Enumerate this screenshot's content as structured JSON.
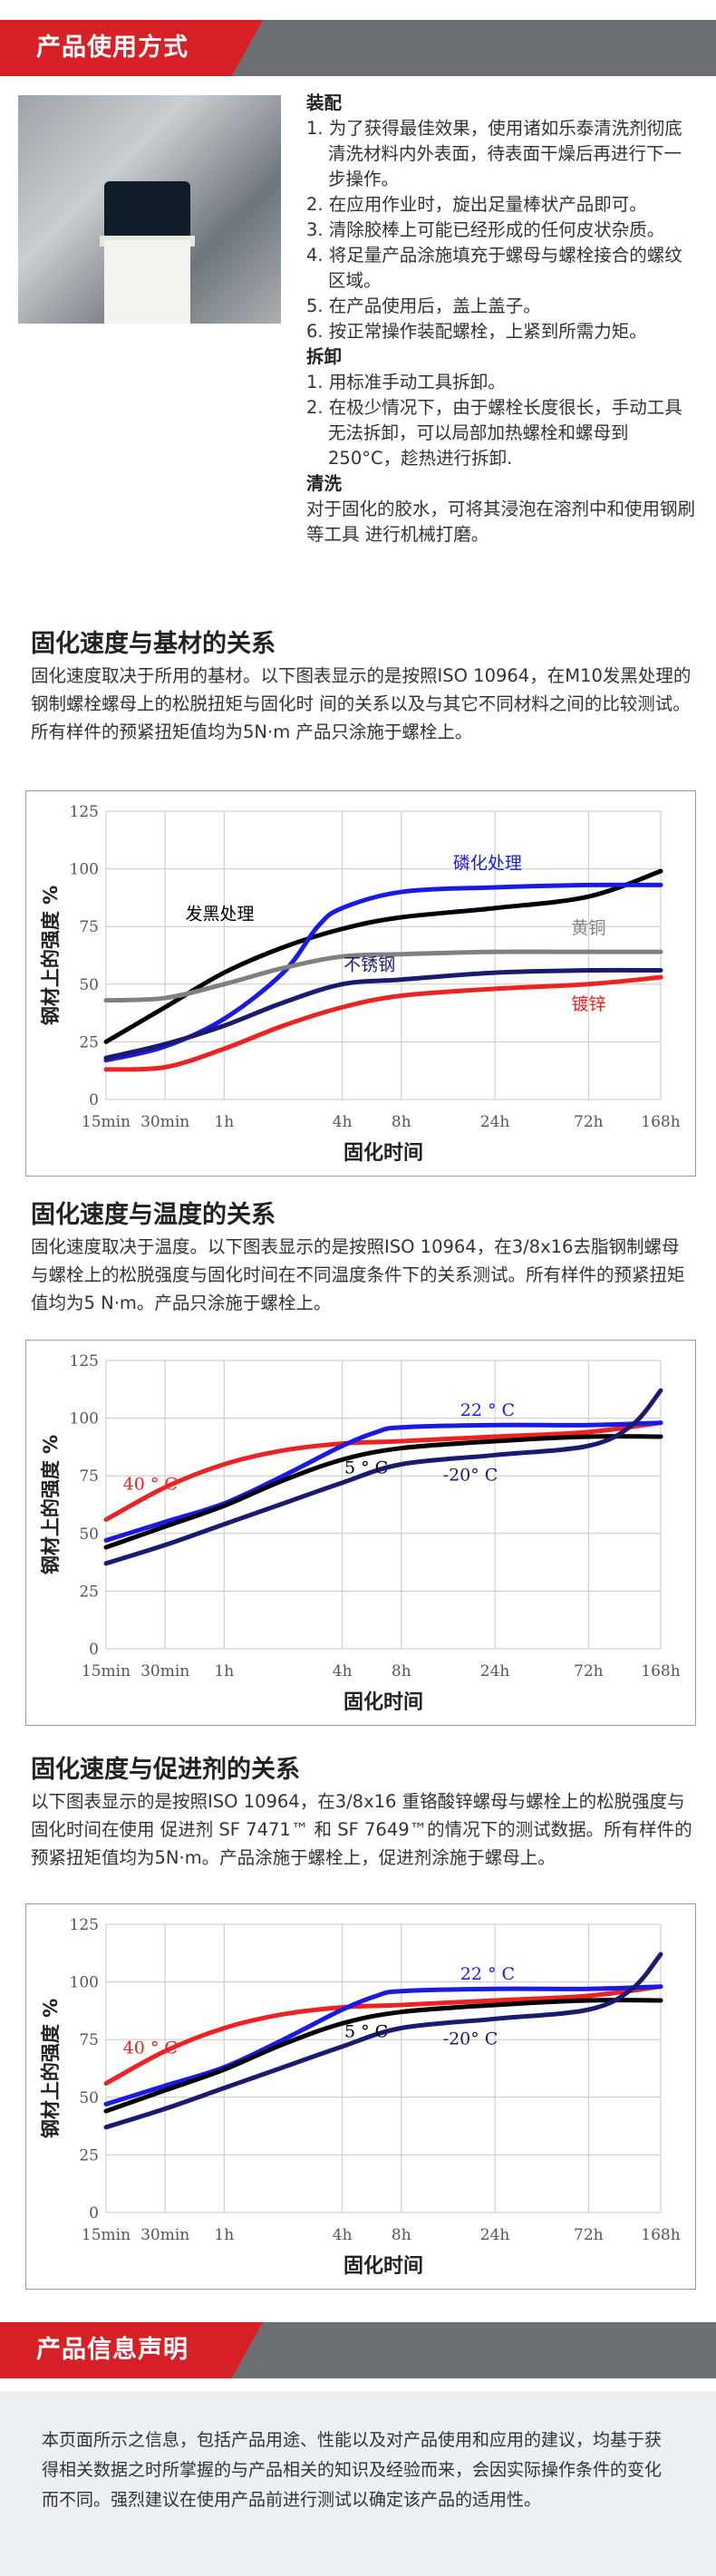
{
  "usage_header": "产品使用方式",
  "instructions": {
    "assembly_title": "装配",
    "assembly_steps": [
      "1. 为了获得最佳效果，使用诸如乐泰清洗剂彻底清洗材料内外表面，待表面干燥后再进行下一步操作。",
      "2. 在应用作业时，旋出足量棒状产品即可。",
      "3. 清除胶棒上可能已经形成的任何皮状杂质。",
      "4. 将足量产品涂施填充于螺母与螺栓接合的螺纹区域。",
      "5. 在产品使用后，盖上盖子。",
      "6. 按正常操作装配螺栓，上紧到所需力矩。"
    ],
    "disassembly_title": "拆卸",
    "disassembly_steps": [
      "1. 用标准手动工具拆卸。",
      "2. 在极少情况下，由于螺栓长度很长，手动工具无法拆卸，可以局部加热螺栓和螺母到250°C，趁热进行拆卸."
    ],
    "cleanup_title": "清洗",
    "cleanup_text": "对于固化的胶水，可将其浸泡在溶剂中和使用钢刷等工具 进行机械打磨。"
  },
  "section_substrate": {
    "title": "固化速度与基材的关系",
    "text": "固化速度取决于所用的基材。以下图表显示的是按照ISO 10964，在M10发黑处理的钢制螺栓螺母上的松脱扭矩与固化时 间的关系以及与其它不同材料之间的比较测试。所有样件的预紧扭矩值均为5N·m 产品只涂施于螺栓上。"
  },
  "section_temperature": {
    "title": "固化速度与温度的关系",
    "text": " 固化速度取决于温度。以下图表显示的是按照ISO 10964，在3/8x16去脂钢制螺母与螺栓上的松脱强度与固化时间在不同温度条件下的关系测试。所有样件的预紧扭矩值均为5 N·m。产品只涂施于螺栓上。"
  },
  "section_activator": {
    "title": "固化速度与促进剂的关系",
    "text": "以下图表显示的是按照ISO 10964，在3/8x16 重铬酸锌螺母与螺栓上的松脱强度与固化时间在使用 促进剂 SF 7471™ 和 SF 7649™的情况下的测试数据。所有样件的预紧扭矩值均为5N·m。产品涂施于螺栓上，促进剂涂施于螺母上。"
  },
  "info_header": "产品信息声明",
  "info_text": "本页面所示之信息，包括产品用途、性能以及对产品使用和应用的建议，均基于获得相关数据之时所掌握的与产品相关的知识及经验而来，会因实际操作条件的变化而不同。强烈建议在使用产品前进行测试以确定该产品的适用性。",
  "chart_data": [
    {
      "type": "line",
      "xlabel": "固化时间",
      "ylabel": "钢材上的强度 %",
      "ylim": [
        0,
        125
      ],
      "yticks": [
        0,
        25,
        50,
        75,
        100,
        125
      ],
      "xticks": [
        "15min",
        "30min",
        "1h",
        "4h",
        "8h",
        "24h",
        "72h",
        "168h"
      ],
      "x_hours": [
        0.25,
        0.5,
        1,
        4,
        8,
        24,
        72,
        168
      ],
      "grid": true,
      "series": [
        {
          "name": "发黑处理",
          "color": "#000000",
          "x": [
            0.25,
            0.5,
            1,
            2,
            4,
            8,
            24,
            72,
            168
          ],
          "y": [
            25,
            40,
            55,
            66,
            74,
            79,
            83,
            88,
            99
          ]
        },
        {
          "name": "磷化处理",
          "color": "#1a1ae6",
          "x": [
            0.25,
            0.5,
            1,
            2,
            3,
            4,
            8,
            24,
            72,
            168
          ],
          "y": [
            17,
            23,
            35,
            55,
            75,
            83,
            90,
            92,
            93,
            93
          ]
        },
        {
          "name": "黄铜",
          "color": "#808080",
          "x": [
            0.25,
            0.5,
            1,
            2,
            4,
            8,
            24,
            72,
            168
          ],
          "y": [
            43,
            44,
            50,
            57,
            62,
            63,
            64,
            64,
            64
          ]
        },
        {
          "name": "不锈钢",
          "color": "#1a1a70",
          "x": [
            0.25,
            0.5,
            1,
            2,
            4,
            8,
            24,
            72,
            168
          ],
          "y": [
            18,
            24,
            32,
            42,
            50,
            52,
            55,
            56,
            56
          ]
        },
        {
          "name": "镀锌",
          "color": "#ee2222",
          "x": [
            0.25,
            0.5,
            1,
            2,
            4,
            8,
            24,
            72,
            168
          ],
          "y": [
            13,
            14,
            22,
            32,
            40,
            45,
            48,
            50,
            53
          ]
        }
      ],
      "annotations": [
        "发黑处理",
        "磷化处理",
        "黄铜",
        "不锈钢",
        "镀锌"
      ]
    },
    {
      "type": "line",
      "xlabel": "固化时间",
      "ylabel": "钢材上的强度 %",
      "ylim": [
        0,
        125
      ],
      "yticks": [
        0,
        25,
        50,
        75,
        100,
        125
      ],
      "xticks": [
        "15min",
        "30min",
        "1h",
        "4h",
        "8h",
        "24h",
        "72h",
        "168h"
      ],
      "x_hours": [
        0.25,
        0.5,
        1,
        4,
        8,
        24,
        72,
        168
      ],
      "grid": true,
      "series": [
        {
          "name": "40 ° C",
          "color": "#ee2222",
          "x": [
            0.25,
            0.5,
            1,
            2,
            4,
            8,
            24,
            72,
            168
          ],
          "y": [
            56,
            70,
            80,
            86,
            89,
            90,
            92,
            94,
            98
          ]
        },
        {
          "name": "22 ° C",
          "color": "#1a1ae6",
          "x": [
            0.25,
            0.5,
            1,
            2,
            4,
            6,
            8,
            24,
            72,
            168
          ],
          "y": [
            47,
            55,
            63,
            75,
            88,
            94,
            96,
            97,
            97,
            98
          ]
        },
        {
          "name": "5 ° C",
          "color": "#000000",
          "x": [
            0.25,
            0.5,
            1,
            2,
            4,
            8,
            24,
            72,
            168
          ],
          "y": [
            44,
            53,
            62,
            73,
            82,
            87,
            90,
            92,
            92
          ]
        },
        {
          "name": "-20° C",
          "color": "#1a1a70",
          "x": [
            0.25,
            0.5,
            1,
            2,
            4,
            8,
            24,
            72,
            120,
            168
          ],
          "y": [
            37,
            45,
            54,
            63,
            72,
            80,
            84,
            88,
            97,
            112
          ]
        }
      ],
      "annotations": [
        "40 ° C",
        "22 ° C",
        "5 ° C",
        "-20° C"
      ]
    },
    {
      "type": "line",
      "xlabel": "固化时间",
      "ylabel": "钢材上的强度 %",
      "ylim": [
        0,
        125
      ],
      "yticks": [
        0,
        25,
        50,
        75,
        100,
        125
      ],
      "xticks": [
        "15min",
        "30min",
        "1h",
        "4h",
        "8h",
        "24h",
        "72h",
        "168h"
      ],
      "x_hours": [
        0.25,
        0.5,
        1,
        4,
        8,
        24,
        72,
        168
      ],
      "grid": true,
      "series": [
        {
          "name": "40 ° C",
          "color": "#ee2222",
          "x": [
            0.25,
            0.5,
            1,
            2,
            4,
            8,
            24,
            72,
            168
          ],
          "y": [
            56,
            70,
            80,
            86,
            89,
            90,
            92,
            94,
            98
          ]
        },
        {
          "name": "22 ° C",
          "color": "#1a1ae6",
          "x": [
            0.25,
            0.5,
            1,
            2,
            4,
            6,
            8,
            24,
            72,
            168
          ],
          "y": [
            47,
            55,
            63,
            75,
            88,
            94,
            96,
            97,
            97,
            98
          ]
        },
        {
          "name": "5 ° C",
          "color": "#000000",
          "x": [
            0.25,
            0.5,
            1,
            2,
            4,
            8,
            24,
            72,
            168
          ],
          "y": [
            44,
            53,
            62,
            73,
            82,
            87,
            90,
            92,
            92
          ]
        },
        {
          "name": "-20° C",
          "color": "#1a1a70",
          "x": [
            0.25,
            0.5,
            1,
            2,
            4,
            8,
            24,
            72,
            120,
            168
          ],
          "y": [
            37,
            45,
            54,
            63,
            72,
            80,
            84,
            88,
            97,
            112
          ]
        }
      ],
      "annotations": [
        "40 ° C",
        "22 ° C",
        "5 ° C",
        "-20° C"
      ]
    }
  ]
}
